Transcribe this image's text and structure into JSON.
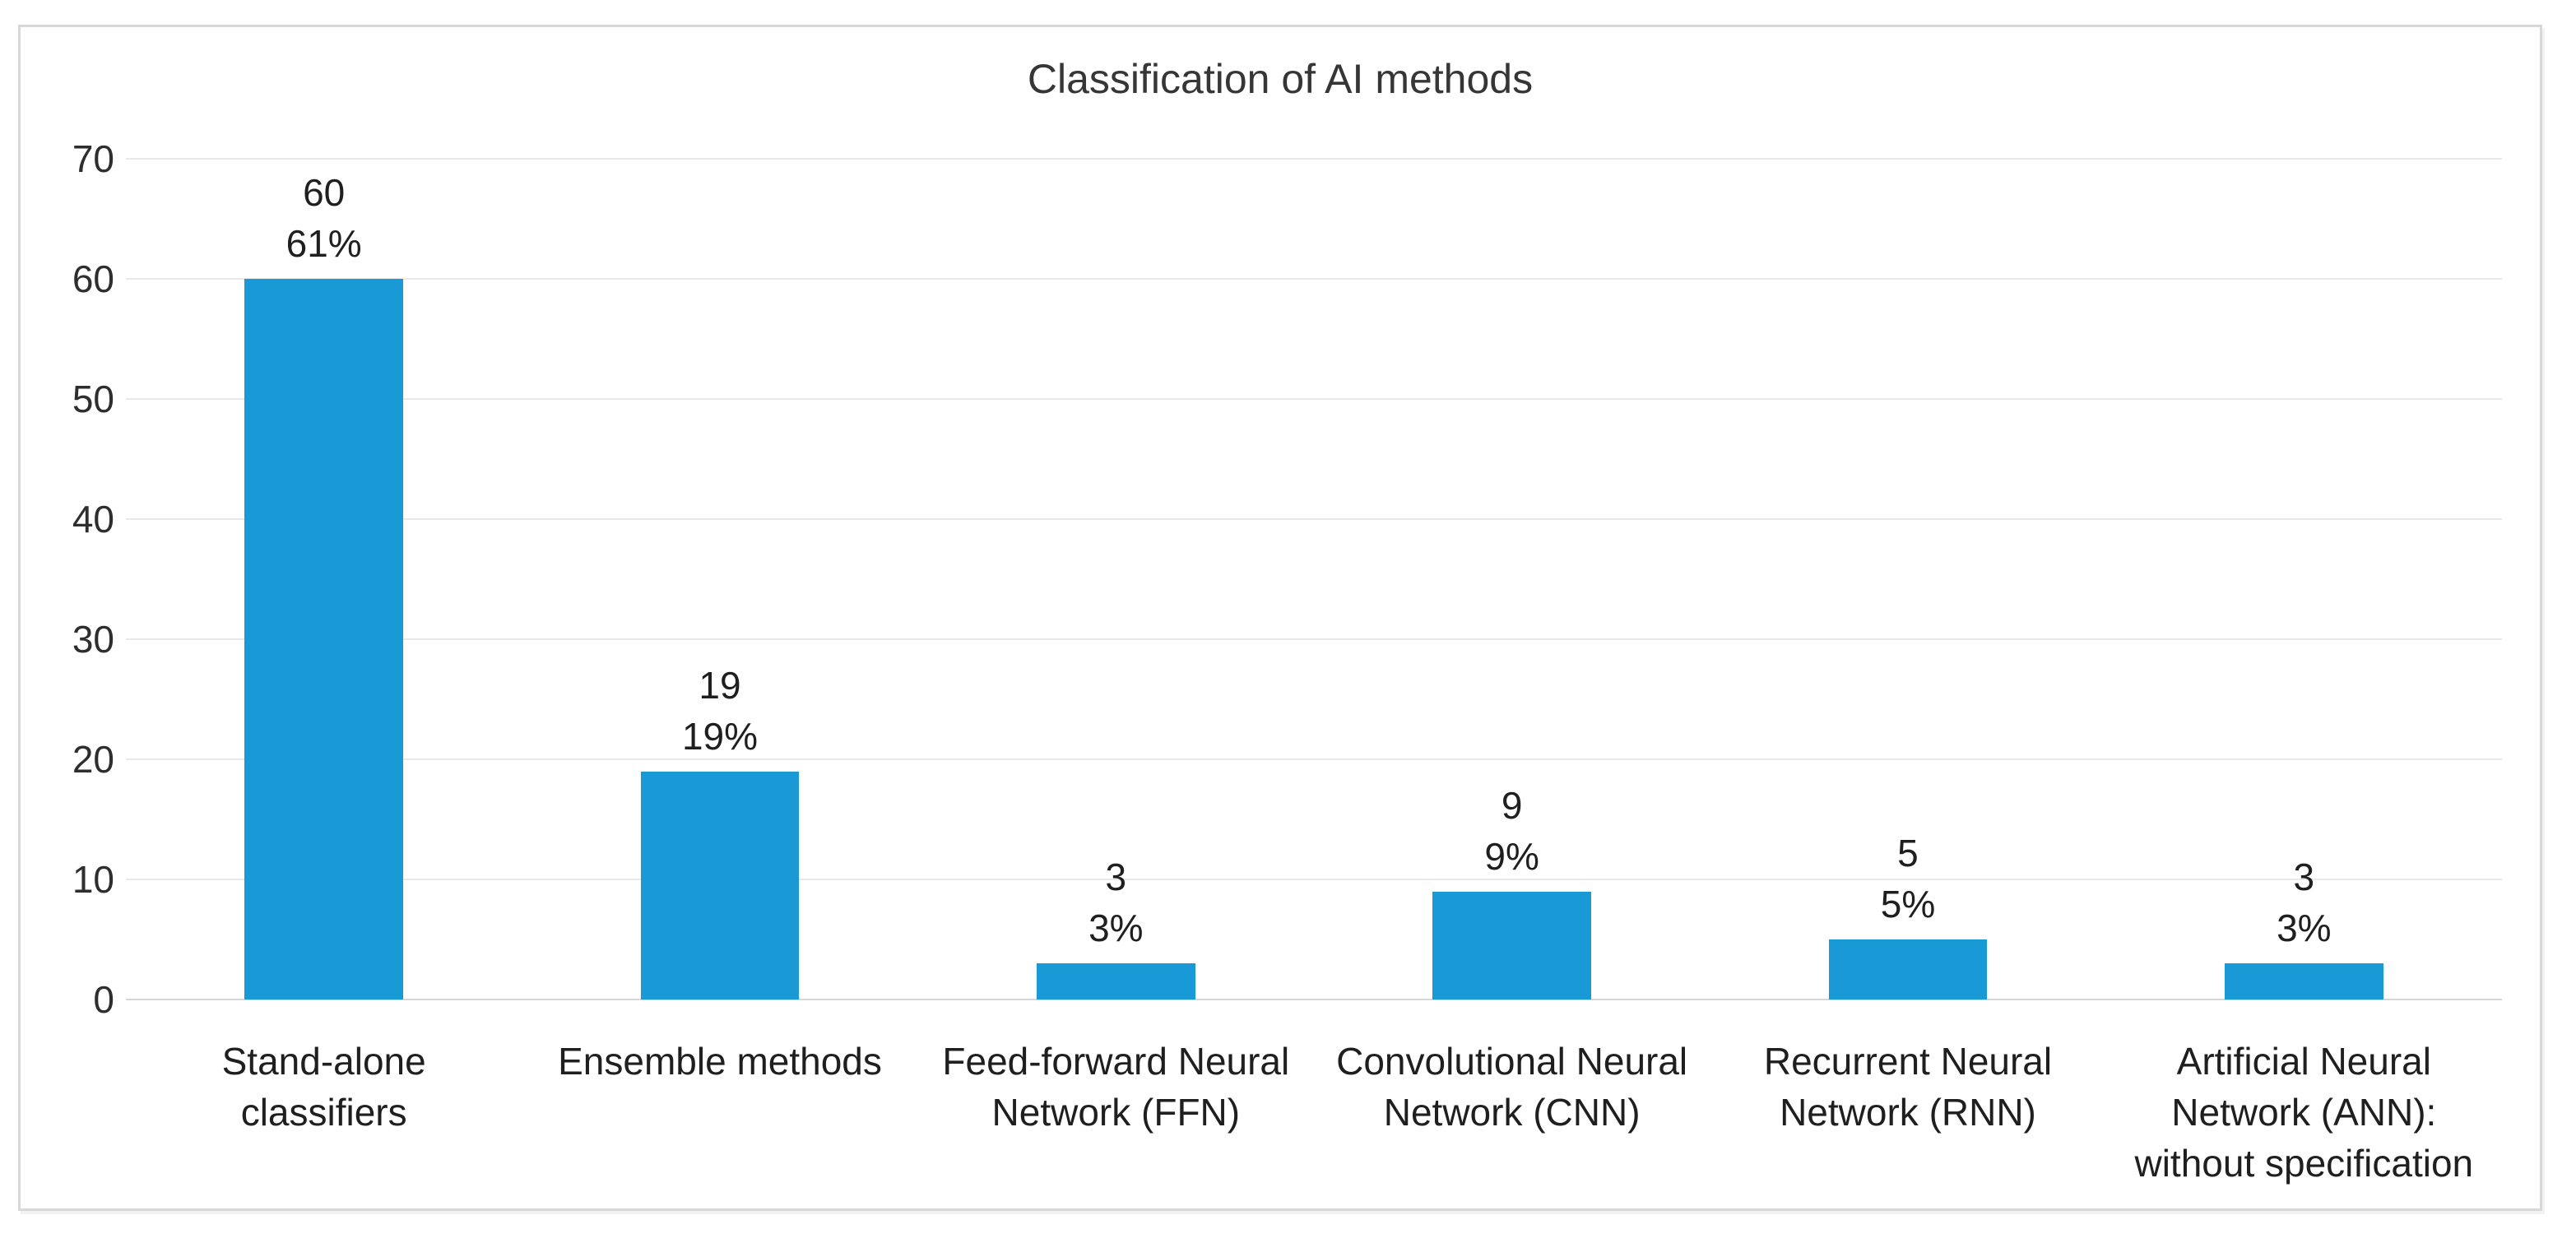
{
  "chart_data": {
    "type": "bar",
    "title": "Classification of AI methods",
    "categories": [
      "Stand-alone classifiers",
      "Ensemble methods",
      "Feed-forward Neural\nNetwork (FFN)",
      "Convolutional Neural\nNetwork (CNN)",
      "Recurrent Neural\nNetwork (RNN)",
      "Artificial Neural\nNetwork (ANN):\nwithout specification"
    ],
    "values": [
      60,
      19,
      3,
      9,
      5,
      3
    ],
    "data_labels": [
      {
        "count": "60",
        "percent": "61%"
      },
      {
        "count": "19",
        "percent": "19%"
      },
      {
        "count": "3",
        "percent": "3%"
      },
      {
        "count": "9",
        "percent": "9%"
      },
      {
        "count": "5",
        "percent": "5%"
      },
      {
        "count": "3",
        "percent": "3%"
      }
    ],
    "xlabel": "",
    "ylabel": "",
    "ylim": [
      0,
      70
    ],
    "yticks": [
      0,
      10,
      20,
      30,
      40,
      50,
      60,
      70
    ],
    "grid": "horizontal",
    "legend_position": "none",
    "bar_color": "#199ad6"
  },
  "style": {
    "grid_color": "#e9e9e9",
    "axis_line_color": "#d6d6d6",
    "frame_border_color": "#d8d8d8",
    "text_color": "#1f1f1f"
  }
}
